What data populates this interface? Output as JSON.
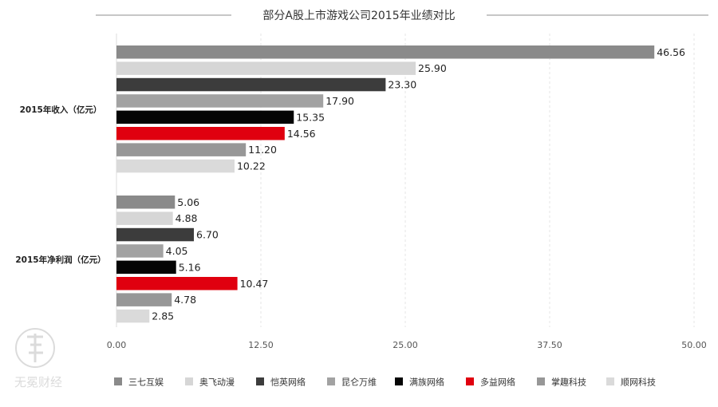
{
  "chart_data": {
    "type": "bar",
    "orientation": "horizontal",
    "title": "部分A股上市游戏公司2015年业绩对比",
    "groups": [
      "2015年收入（亿元）",
      "2015年净利润（亿元）"
    ],
    "series": [
      {
        "name": "三七互娱",
        "color": "#8a8a8a",
        "values": [
          46.56,
          5.06
        ]
      },
      {
        "name": "奥飞动漫",
        "color": "#d6d6d6",
        "values": [
          25.9,
          4.88
        ]
      },
      {
        "name": "恺英网络",
        "color": "#3c3c3c",
        "values": [
          23.3,
          6.7
        ]
      },
      {
        "name": "昆仑万维",
        "color": "#a2a2a2",
        "values": [
          17.9,
          4.05
        ]
      },
      {
        "name": "满族网络",
        "color": "#050505",
        "values": [
          15.35,
          5.16
        ]
      },
      {
        "name": "多益网络",
        "color": "#e0000f",
        "values": [
          14.56,
          10.47
        ]
      },
      {
        "name": "掌趣科技",
        "color": "#979797",
        "values": [
          11.2,
          4.78
        ]
      },
      {
        "name": "顺网科技",
        "color": "#dadada",
        "values": [
          10.22,
          2.85
        ]
      }
    ],
    "value_labels": [
      [
        "46.56",
        "25.90",
        "23.30",
        "17.90",
        "15.35",
        "14.56",
        "11.20",
        "10.22"
      ],
      [
        "5.06",
        "4.88",
        "6.70",
        "4.05",
        "5.16",
        "10.47",
        "4.78",
        "2.85"
      ]
    ],
    "x_ticks": [
      "0.00",
      "12.50",
      "25.00",
      "37.50",
      "50.00"
    ],
    "xlim": [
      0,
      50
    ],
    "grid": true,
    "legend_position": "bottom",
    "xlabel": "",
    "ylabel": ""
  },
  "watermark": {
    "text": "无冕财经"
  }
}
